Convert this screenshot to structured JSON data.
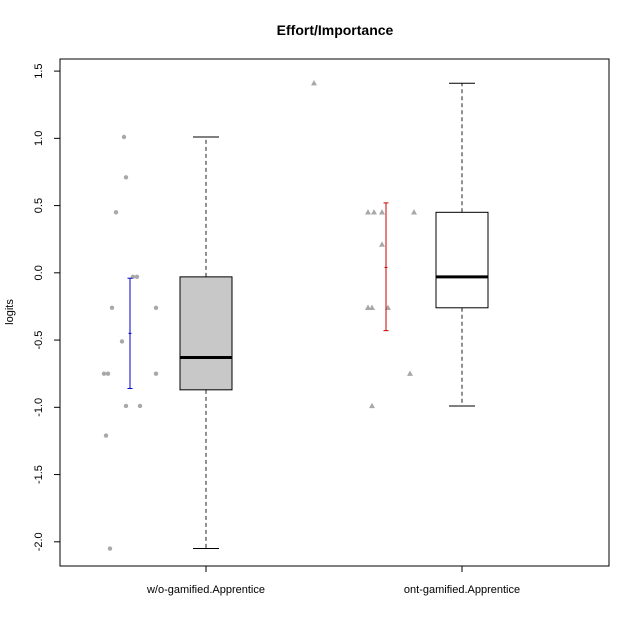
{
  "chart_data": {
    "type": "box",
    "title": "Effort/Importance",
    "ylabel": "logits",
    "xlabel": "",
    "ylim": [
      -2.18,
      1.59
    ],
    "yticks": [
      -2.0,
      -1.5,
      -1.0,
      -0.5,
      0.0,
      0.5,
      1.0,
      1.5
    ],
    "ytick_labels": [
      "-2.0",
      "-1.5",
      "-1.0",
      "-0.5",
      "0.0",
      "0.5",
      "1.0",
      "1.5"
    ],
    "grid": false,
    "categories": [
      "w/o-gamified.Apprentice",
      "ont-gamified.Apprentice"
    ],
    "boxes": [
      {
        "name": "w/o-gamified.Apprentice",
        "whisker_low": -2.05,
        "q1": -0.87,
        "median": -0.63,
        "q3": -0.03,
        "whisker_high": 1.01,
        "fill": "#c8c8c8",
        "marker": "circle",
        "mean": -0.45,
        "ci_low": -0.86,
        "ci_high": -0.04,
        "ci_color": "#0000cc",
        "points": [
          1.01,
          0.71,
          0.45,
          -0.03,
          -0.03,
          -0.26,
          -0.26,
          -0.51,
          -0.75,
          -0.75,
          -0.75,
          -0.99,
          -0.99,
          -1.21,
          -2.05
        ]
      },
      {
        "name": "ont-gamified.Apprentice",
        "whisker_low": -0.99,
        "q1": -0.26,
        "median": -0.03,
        "q3": 0.45,
        "whisker_high": 1.41,
        "fill": "#ffffff",
        "marker": "triangle",
        "mean": 0.04,
        "ci_low": -0.43,
        "ci_high": 0.52,
        "ci_color": "#cc0000",
        "points": [
          1.41,
          0.45,
          0.45,
          0.45,
          0.45,
          0.21,
          -0.26,
          -0.26,
          -0.26,
          -0.26,
          -0.75,
          -0.99
        ]
      }
    ]
  }
}
